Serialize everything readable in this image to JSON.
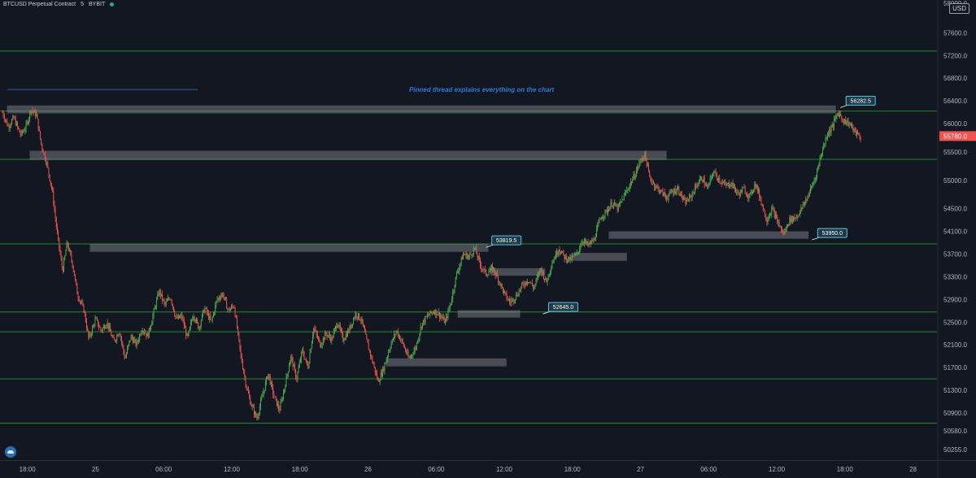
{
  "header": {
    "symbol": "BTCUSD Perpetual Contract",
    "interval": "5",
    "exchange": "BYBIT"
  },
  "price_axis": {
    "currency_button": "USD",
    "current_price_label": "55780.0",
    "top_partial_label": "58000.0"
  },
  "colors": {
    "background": "#131722",
    "up_candle": "#4caf50",
    "down_candle": "#ef5350",
    "level_line": "#1f8a2c",
    "zone": "#8d8f95",
    "callout_bg": "#1e3a4a",
    "callout_border": "#5ec4d8",
    "annotation_text": "#2f7ad8",
    "current_price_bg": "#f05350"
  },
  "chart_data": {
    "type": "candlestick",
    "title": "",
    "xlabel": "",
    "ylabel": "",
    "ylim": [
      50000,
      58150
    ],
    "grid": false,
    "x_ticks": [
      {
        "label": "18:00",
        "hour": 18
      },
      {
        "label": "25",
        "hour": 24
      },
      {
        "label": "06:00",
        "hour": 30
      },
      {
        "label": "12:00",
        "hour": 36
      },
      {
        "label": "18:00",
        "hour": 42
      },
      {
        "label": "26",
        "hour": 48
      },
      {
        "label": "06:00",
        "hour": 54
      },
      {
        "label": "12:00",
        "hour": 60
      },
      {
        "label": "18:00",
        "hour": 66
      },
      {
        "label": "27",
        "hour": 72
      },
      {
        "label": "06:00",
        "hour": 78
      },
      {
        "label": "12:00",
        "hour": 84
      },
      {
        "label": "18:00",
        "hour": 90
      },
      {
        "label": "28",
        "hour": 96
      }
    ],
    "y_ticks": [
      57600.0,
      57200.0,
      56800.0,
      56400.0,
      56000.0,
      55500.0,
      55000.0,
      54500.0,
      54100.0,
      53700.0,
      53300.0,
      52900.0,
      52500.0,
      52100.0,
      51700.0,
      51300.0,
      50900.0,
      50580.0,
      50255.0
    ],
    "horizontal_levels": [
      57280,
      56220,
      55370,
      53880,
      52680,
      52330,
      51500,
      50720
    ],
    "zones": [
      {
        "start_hour": 16.2,
        "end_hour": 89.2,
        "top": 56320,
        "bottom": 56180
      },
      {
        "start_hour": 18.2,
        "end_hour": 74.3,
        "top": 55520,
        "bottom": 55360
      },
      {
        "start_hour": 23.5,
        "end_hour": 58.6,
        "top": 53880,
        "bottom": 53740
      },
      {
        "start_hour": 58.8,
        "end_hour": 63.6,
        "top": 53450,
        "bottom": 53320
      },
      {
        "start_hour": 55.9,
        "end_hour": 61.4,
        "top": 52710,
        "bottom": 52580
      },
      {
        "start_hour": 49.6,
        "end_hour": 60.2,
        "top": 51860,
        "bottom": 51720
      },
      {
        "start_hour": 66.0,
        "end_hour": 70.8,
        "top": 53720,
        "bottom": 53580
      },
      {
        "start_hour": 69.2,
        "end_hour": 86.8,
        "top": 54100,
        "bottom": 53970
      }
    ],
    "callouts": [
      {
        "label": "56282.5",
        "hour": 89.6,
        "price": 56282.5
      },
      {
        "label": "53819.5",
        "hour": 58.4,
        "price": 53819.5
      },
      {
        "label": "52645.0",
        "hour": 63.4,
        "price": 52645.0
      },
      {
        "label": "53950.0",
        "hour": 87.1,
        "price": 53950.0
      }
    ],
    "annotation": {
      "text": "Pinned thread explains everything on the chart",
      "hour": 58.0,
      "price": 56560
    },
    "guide_line": {
      "start_hour": 16.2,
      "end_hour": 33.0,
      "price": 56600
    },
    "path": [
      [
        15.8,
        56200
      ],
      [
        16.3,
        55950
      ],
      [
        16.8,
        56100
      ],
      [
        17.4,
        55800
      ],
      [
        17.9,
        55950
      ],
      [
        18.3,
        56250
      ],
      [
        18.8,
        56150
      ],
      [
        19.2,
        55650
      ],
      [
        19.7,
        55300
      ],
      [
        20.2,
        54800
      ],
      [
        20.6,
        54100
      ],
      [
        21.1,
        53400
      ],
      [
        21.5,
        53900
      ],
      [
        22.0,
        53500
      ],
      [
        22.4,
        53000
      ],
      [
        23.0,
        52700
      ],
      [
        23.4,
        52200
      ],
      [
        24.0,
        52550
      ],
      [
        24.5,
        52350
      ],
      [
        25.0,
        52500
      ],
      [
        25.6,
        52150
      ],
      [
        26.1,
        52350
      ],
      [
        26.6,
        51850
      ],
      [
        27.1,
        52250
      ],
      [
        27.6,
        52100
      ],
      [
        28.1,
        52400
      ],
      [
        28.6,
        52250
      ],
      [
        29.1,
        52650
      ],
      [
        29.6,
        53050
      ],
      [
        30.1,
        52800
      ],
      [
        30.6,
        52950
      ],
      [
        31.1,
        52550
      ],
      [
        31.6,
        52600
      ],
      [
        32.1,
        52200
      ],
      [
        32.6,
        52650
      ],
      [
        33.1,
        52400
      ],
      [
        33.6,
        52750
      ],
      [
        34.2,
        52500
      ],
      [
        34.7,
        52900
      ],
      [
        35.2,
        53000
      ],
      [
        35.7,
        52700
      ],
      [
        36.2,
        52800
      ],
      [
        36.8,
        51900
      ],
      [
        37.3,
        51350
      ],
      [
        37.7,
        51050
      ],
      [
        38.2,
        50800
      ],
      [
        38.7,
        51200
      ],
      [
        39.2,
        51600
      ],
      [
        39.7,
        51200
      ],
      [
        40.2,
        50950
      ],
      [
        40.6,
        51300
      ],
      [
        41.2,
        51900
      ],
      [
        41.7,
        51500
      ],
      [
        42.2,
        52000
      ],
      [
        42.7,
        51700
      ],
      [
        43.2,
        52400
      ],
      [
        43.8,
        52100
      ],
      [
        44.3,
        52300
      ],
      [
        44.8,
        52200
      ],
      [
        45.3,
        52500
      ],
      [
        45.8,
        52200
      ],
      [
        46.3,
        52350
      ],
      [
        46.9,
        52650
      ],
      [
        47.4,
        52550
      ],
      [
        47.9,
        52150
      ],
      [
        48.4,
        51800
      ],
      [
        48.9,
        51450
      ],
      [
        49.4,
        51700
      ],
      [
        49.9,
        52050
      ],
      [
        50.5,
        52350
      ],
      [
        51.0,
        52150
      ],
      [
        51.6,
        51850
      ],
      [
        52.2,
        52050
      ],
      [
        52.7,
        52450
      ],
      [
        53.2,
        52600
      ],
      [
        53.8,
        52700
      ],
      [
        54.2,
        52650
      ],
      [
        54.8,
        52500
      ],
      [
        55.3,
        52850
      ],
      [
        55.8,
        53350
      ],
      [
        56.4,
        53700
      ],
      [
        56.9,
        53650
      ],
      [
        57.4,
        53800
      ],
      [
        57.9,
        53500
      ],
      [
        58.4,
        53350
      ],
      [
        59.0,
        53450
      ],
      [
        59.5,
        53250
      ],
      [
        60.0,
        53000
      ],
      [
        60.5,
        52850
      ],
      [
        61.0,
        52950
      ],
      [
        61.6,
        53150
      ],
      [
        62.1,
        53250
      ],
      [
        62.6,
        53100
      ],
      [
        63.2,
        53450
      ],
      [
        63.7,
        53200
      ],
      [
        64.2,
        53550
      ],
      [
        64.8,
        53800
      ],
      [
        65.3,
        53650
      ],
      [
        65.8,
        53600
      ],
      [
        66.4,
        53700
      ],
      [
        66.9,
        53950
      ],
      [
        67.4,
        53850
      ],
      [
        67.9,
        53950
      ],
      [
        68.5,
        54350
      ],
      [
        69.0,
        54450
      ],
      [
        69.5,
        54600
      ],
      [
        70.0,
        54500
      ],
      [
        70.5,
        54700
      ],
      [
        71.0,
        54900
      ],
      [
        71.5,
        55100
      ],
      [
        72.0,
        55350
      ],
      [
        72.4,
        55450
      ],
      [
        72.8,
        55050
      ],
      [
        73.3,
        54900
      ],
      [
        73.8,
        54800
      ],
      [
        74.3,
        54700
      ],
      [
        74.8,
        54800
      ],
      [
        75.3,
        54850
      ],
      [
        75.9,
        54600
      ],
      [
        76.4,
        54700
      ],
      [
        76.9,
        54900
      ],
      [
        77.4,
        55050
      ],
      [
        77.9,
        54850
      ],
      [
        78.4,
        55150
      ],
      [
        79.0,
        55000
      ],
      [
        79.5,
        54900
      ],
      [
        80.0,
        54950
      ],
      [
        80.6,
        54750
      ],
      [
        81.1,
        54850
      ],
      [
        81.6,
        54700
      ],
      [
        82.1,
        54950
      ],
      [
        82.6,
        54650
      ],
      [
        83.1,
        54300
      ],
      [
        83.6,
        54500
      ],
      [
        84.1,
        54250
      ],
      [
        84.6,
        54050
      ],
      [
        85.1,
        54300
      ],
      [
        85.7,
        54350
      ],
      [
        86.2,
        54500
      ],
      [
        86.8,
        54750
      ],
      [
        87.4,
        55050
      ],
      [
        87.9,
        55450
      ],
      [
        88.4,
        55800
      ],
      [
        88.9,
        55950
      ],
      [
        89.4,
        56200
      ],
      [
        89.9,
        56050
      ],
      [
        90.4,
        56000
      ],
      [
        90.9,
        55850
      ],
      [
        91.4,
        55750
      ]
    ]
  }
}
